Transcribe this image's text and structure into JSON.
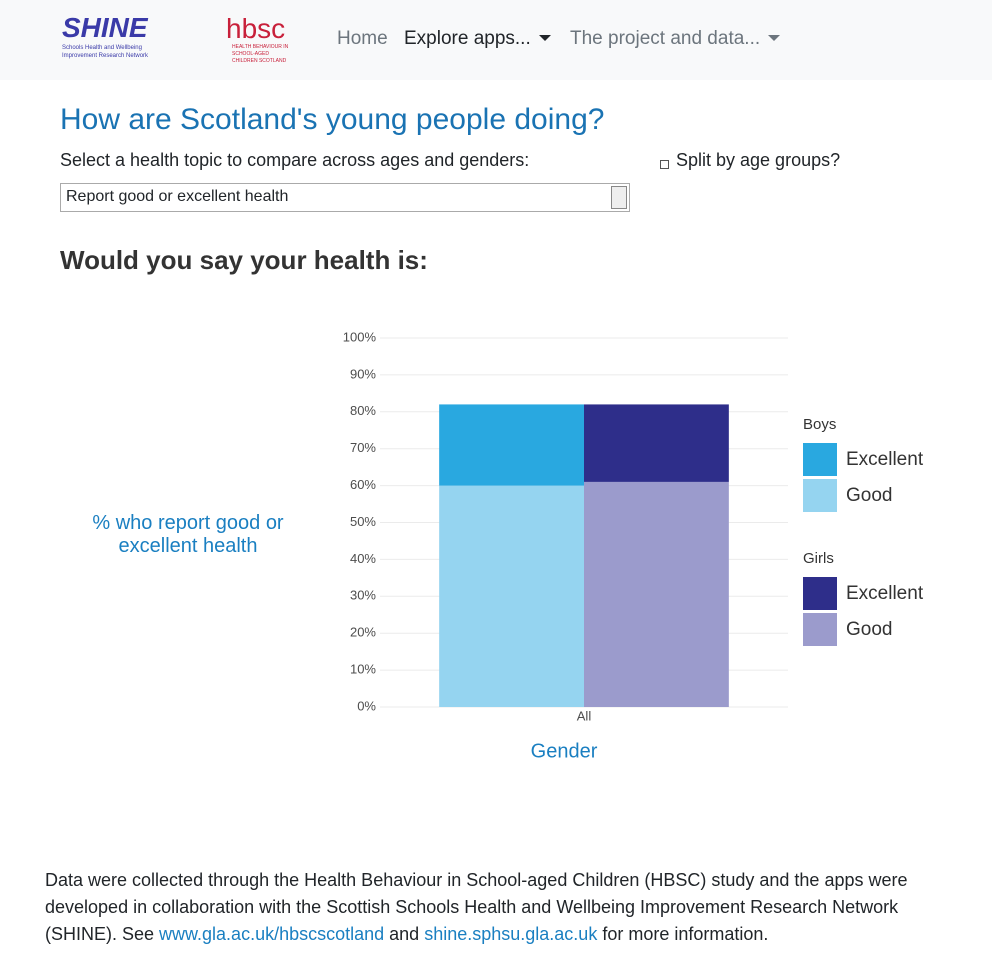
{
  "nav": {
    "logo_shine": "SHINE",
    "logo_shine_sub": "Schools Health and Wellbeing Improvement Research Network",
    "logo_hbsc": "hbsc",
    "logo_hbsc_sub": "HEALTH BEHAVIOUR IN SCHOOL-AGED CHILDREN SCOTLAND",
    "items": [
      "Home",
      "Explore apps...",
      "The project and data..."
    ]
  },
  "header": {
    "title": "How are Scotland's young people doing?",
    "select_label": "Select a health topic to compare across ages and genders:",
    "select_value": "Report good or excellent health",
    "checkbox_label": "Split by age groups?"
  },
  "question": "Would you say your health is:",
  "chart_data": {
    "type": "bar",
    "x_label": "Gender",
    "y_label": "% who report good or excellent health",
    "categories": [
      "All"
    ],
    "groups": [
      {
        "name": "Boys",
        "series": [
          {
            "name": "Excellent",
            "color": "#29a8e0",
            "values": [
              22
            ]
          },
          {
            "name": "Good",
            "color": "#95d4f0",
            "values": [
              60
            ]
          }
        ]
      },
      {
        "name": "Girls",
        "series": [
          {
            "name": "Excellent",
            "color": "#2e2e8a",
            "values": [
              21
            ]
          },
          {
            "name": "Good",
            "color": "#9b9bcc",
            "values": [
              61
            ]
          }
        ]
      }
    ],
    "ylim": [
      0,
      100
    ],
    "yticks": [
      {
        "value": 0,
        "label": "0%"
      },
      {
        "value": 10,
        "label": "10%"
      },
      {
        "value": 20,
        "label": "20%"
      },
      {
        "value": 30,
        "label": "30%"
      },
      {
        "value": 40,
        "label": "40%"
      },
      {
        "value": 50,
        "label": "50%"
      },
      {
        "value": 60,
        "label": "60%"
      },
      {
        "value": 70,
        "label": "70%"
      },
      {
        "value": 80,
        "label": "80%"
      },
      {
        "value": 90,
        "label": "90%"
      },
      {
        "value": 100,
        "label": "100%"
      }
    ],
    "grid": true
  },
  "footer": {
    "text_1": "Data were collected through the Health Behaviour in School-aged Children (HBSC) study and the apps were developed in collaboration with the Scottish Schools Health and Wellbeing Improvement Research Network (SHINE). See ",
    "link_1": "www.gla.ac.uk/hbscscotland",
    "text_2": " and ",
    "link_2": "shine.sphsu.gla.ac.uk",
    "text_3": " for more information."
  }
}
